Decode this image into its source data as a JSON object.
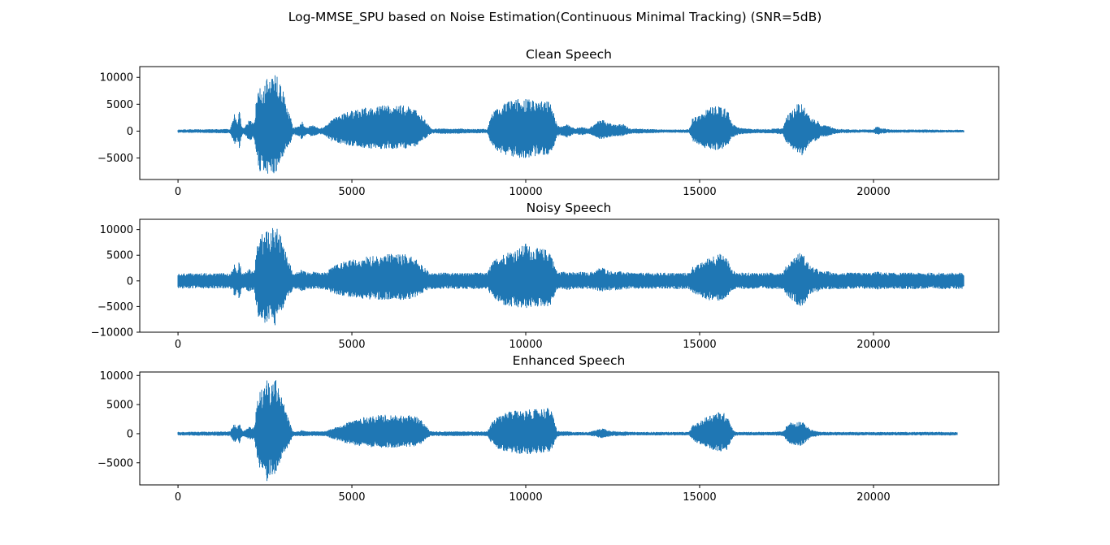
{
  "figure": {
    "suptitle": "Log-MMSE_SPU based on Noise Estimation(Continuous Minimal Tracking) (SNR=5dB)",
    "series_color": "#1f77b4"
  },
  "chart_data": [
    {
      "type": "line",
      "title": "Clean Speech",
      "xlabel": "",
      "ylabel": "",
      "xlim": [
        -1100,
        23600
      ],
      "ylim": [
        -9000,
        12000
      ],
      "xticks": [
        0,
        5000,
        10000,
        15000,
        20000
      ],
      "xtick_labels": [
        "0",
        "5000",
        "10000",
        "15000",
        "20000"
      ],
      "yticks": [
        -5000,
        0,
        5000,
        10000
      ],
      "ytick_labels": [
        "−5000",
        "0",
        "5000",
        "10000"
      ],
      "grid": false,
      "n_samples": 22600,
      "noise_floor": 150,
      "envelope": {
        "x": [
          0,
          1500,
          1580,
          1640,
          1700,
          1760,
          1840,
          1900,
          2050,
          2200,
          2250,
          2300,
          2380,
          2450,
          2550,
          2650,
          2750,
          2800,
          2900,
          3000,
          3150,
          3250,
          3300,
          3400,
          3500,
          3550,
          3700,
          3800,
          3900,
          4050,
          4200,
          4300,
          4400,
          4600,
          4800,
          5000,
          5200,
          5500,
          5800,
          6000,
          6200,
          6500,
          6800,
          7000,
          7200,
          7300,
          7500,
          8000,
          8500,
          8900,
          9000,
          9200,
          9500,
          9800,
          10000,
          10200,
          10400,
          10700,
          10800,
          10900,
          11000,
          11200,
          11400,
          11600,
          11800,
          12000,
          12100,
          12200,
          12400,
          12600,
          12800,
          13000,
          13500,
          14000,
          14500,
          14700,
          14800,
          15000,
          15200,
          15400,
          15600,
          15800,
          15900,
          16000,
          16100,
          16300,
          16600,
          17000,
          17400,
          17500,
          17600,
          17800,
          17900,
          18000,
          18200,
          18400,
          18500,
          18700,
          18800,
          18900,
          19000,
          19500,
          20000,
          20100,
          20200,
          20500,
          21000,
          21500,
          22000,
          22600
        ],
        "upper": [
          300,
          400,
          2200,
          3600,
          1200,
          4000,
          800,
          600,
          2200,
          1500,
          6000,
          7500,
          9500,
          8000,
          11000,
          9000,
          10500,
          11200,
          9000,
          8000,
          4000,
          2500,
          600,
          800,
          1000,
          2000,
          600,
          1000,
          1200,
          500,
          800,
          1500,
          2200,
          3000,
          3500,
          3800,
          4200,
          4500,
          4800,
          5000,
          5000,
          4800,
          4500,
          3000,
          1200,
          400,
          500,
          500,
          400,
          400,
          3000,
          4500,
          5500,
          6000,
          6000,
          5800,
          5800,
          5500,
          3500,
          1200,
          800,
          1400,
          500,
          800,
          500,
          1500,
          2000,
          2200,
          1500,
          1200,
          1400,
          500,
          400,
          300,
          300,
          400,
          2500,
          3000,
          4000,
          4800,
          4800,
          4200,
          1800,
          1200,
          700,
          500,
          400,
          400,
          600,
          2800,
          3500,
          5000,
          5200,
          4600,
          2500,
          2000,
          1000,
          1200,
          700,
          500,
          400,
          300,
          300,
          1000,
          600,
          300,
          300,
          300,
          250,
          250
        ],
        "lower": [
          -300,
          -400,
          -1800,
          -3200,
          -1200,
          -3400,
          -800,
          -600,
          -1800,
          -1500,
          -5000,
          -6500,
          -8000,
          -7000,
          -8800,
          -7500,
          -8500,
          -8200,
          -6500,
          -5000,
          -3000,
          -2000,
          -600,
          -800,
          -1000,
          -1600,
          -600,
          -1000,
          -1000,
          -500,
          -800,
          -1200,
          -1800,
          -2200,
          -2600,
          -2800,
          -3000,
          -3200,
          -3300,
          -3300,
          -3300,
          -3300,
          -3000,
          -2000,
          -900,
          -400,
          -500,
          -500,
          -400,
          -400,
          -2500,
          -3800,
          -4800,
          -5000,
          -5000,
          -4800,
          -4600,
          -4600,
          -3000,
          -1000,
          -800,
          -1200,
          -500,
          -800,
          -500,
          -1000,
          -1400,
          -1500,
          -1200,
          -1000,
          -900,
          -500,
          -400,
          -300,
          -300,
          -400,
          -2000,
          -2600,
          -3300,
          -3500,
          -3500,
          -3000,
          -1500,
          -1000,
          -700,
          -500,
          -400,
          -400,
          -600,
          -2400,
          -3000,
          -4200,
          -4800,
          -4200,
          -2200,
          -1600,
          -1000,
          -1000,
          -700,
          -500,
          -400,
          -300,
          -300,
          -800,
          -500,
          -300,
          -300,
          -300,
          -250,
          -250
        ]
      }
    },
    {
      "type": "line",
      "title": "Noisy Speech",
      "xlabel": "",
      "ylabel": "",
      "xlim": [
        -1100,
        23600
      ],
      "ylim": [
        -10000,
        12000
      ],
      "xticks": [
        0,
        5000,
        10000,
        15000,
        20000
      ],
      "xtick_labels": [
        "0",
        "5000",
        "10000",
        "15000",
        "20000"
      ],
      "yticks": [
        -10000,
        -5000,
        0,
        5000,
        10000
      ],
      "ytick_labels": [
        "−10000",
        "−5000",
        "0",
        "5000",
        "10000"
      ],
      "grid": false,
      "n_samples": 22600,
      "noise_floor": 1500,
      "envelope": {
        "x": [
          0,
          1500,
          1580,
          1640,
          1700,
          1760,
          1840,
          1900,
          2050,
          2200,
          2250,
          2300,
          2380,
          2450,
          2550,
          2650,
          2750,
          2800,
          2900,
          3000,
          3150,
          3250,
          3300,
          3400,
          3500,
          3550,
          3700,
          3800,
          3900,
          4050,
          4200,
          4300,
          4400,
          4600,
          4800,
          5000,
          5200,
          5500,
          5800,
          6000,
          6200,
          6500,
          6800,
          7000,
          7200,
          7300,
          7500,
          8000,
          8500,
          8900,
          9000,
          9200,
          9500,
          9800,
          10000,
          10200,
          10400,
          10700,
          10800,
          10900,
          11000,
          11200,
          11400,
          11600,
          11800,
          12000,
          12100,
          12200,
          12400,
          12600,
          12800,
          13000,
          13500,
          14000,
          14500,
          14700,
          14800,
          15000,
          15200,
          15400,
          15600,
          15800,
          15900,
          16000,
          16100,
          16300,
          16600,
          17000,
          17400,
          17500,
          17600,
          17800,
          17900,
          18000,
          18200,
          18400,
          18500,
          18700,
          18800,
          18900,
          19000,
          19500,
          20000,
          20100,
          20200,
          20500,
          21000,
          21500,
          22000,
          22600
        ],
        "upper": [
          1500,
          1500,
          2500,
          3800,
          1800,
          4200,
          1600,
          1600,
          2500,
          2000,
          6200,
          7800,
          9800,
          8500,
          11200,
          9200,
          10800,
          11400,
          9300,
          8300,
          4300,
          2800,
          1600,
          1700,
          1800,
          2400,
          1600,
          1700,
          1800,
          1600,
          1700,
          2000,
          2600,
          3300,
          3800,
          4100,
          4500,
          4800,
          5200,
          5500,
          5600,
          5300,
          4900,
          3300,
          1800,
          1600,
          1600,
          1600,
          1600,
          1600,
          3300,
          4800,
          5800,
          6300,
          7500,
          6400,
          6400,
          6000,
          3800,
          1800,
          1700,
          2000,
          1600,
          1800,
          1600,
          2000,
          2500,
          2700,
          2000,
          1800,
          1900,
          1600,
          1600,
          1600,
          1600,
          1600,
          2800,
          3300,
          4300,
          5100,
          5300,
          4600,
          2300,
          1900,
          1600,
          1600,
          1600,
          1600,
          1700,
          3100,
          3800,
          5300,
          5600,
          5000,
          2800,
          2300,
          1800,
          1900,
          1600,
          1600,
          1600,
          1600,
          1600,
          1900,
          1700,
          1600,
          1600,
          1600,
          1600,
          1600
        ],
        "lower": [
          -1500,
          -1500,
          -2200,
          -3500,
          -1700,
          -3800,
          -1600,
          -1600,
          -2200,
          -2000,
          -5400,
          -6900,
          -8400,
          -7500,
          -9200,
          -7900,
          -8900,
          -8600,
          -6900,
          -5500,
          -3400,
          -2500,
          -1600,
          -1700,
          -1800,
          -2200,
          -1600,
          -1700,
          -1700,
          -1600,
          -1700,
          -1900,
          -2300,
          -2700,
          -3000,
          -3200,
          -3400,
          -3600,
          -3700,
          -3700,
          -3700,
          -3700,
          -3400,
          -2500,
          -1700,
          -1600,
          -1600,
          -1600,
          -1600,
          -1600,
          -2900,
          -4200,
          -5200,
          -5400,
          -5400,
          -5200,
          -5000,
          -5000,
          -3400,
          -1700,
          -1600,
          -1800,
          -1600,
          -1600,
          -1600,
          -1800,
          -2000,
          -2100,
          -1900,
          -1800,
          -1700,
          -1600,
          -1600,
          -1600,
          -1600,
          -1600,
          -2400,
          -3000,
          -3700,
          -3900,
          -3900,
          -3400,
          -2000,
          -1700,
          -1600,
          -1600,
          -1600,
          -1600,
          -1600,
          -2800,
          -3400,
          -4600,
          -5200,
          -4600,
          -2600,
          -2100,
          -1700,
          -1700,
          -1600,
          -1600,
          -1600,
          -1600,
          -1600,
          -1700,
          -1600,
          -1600,
          -1600,
          -1600,
          -1600,
          -1600
        ]
      }
    },
    {
      "type": "line",
      "title": "Enhanced Speech",
      "xlabel": "",
      "ylabel": "",
      "xlim": [
        -1100,
        23600
      ],
      "ylim": [
        -8800,
        10600
      ],
      "xticks": [
        0,
        5000,
        10000,
        15000,
        20000
      ],
      "xtick_labels": [
        "0",
        "5000",
        "10000",
        "15000",
        "20000"
      ],
      "yticks": [
        -5000,
        0,
        5000,
        10000
      ],
      "ytick_labels": [
        "−5000",
        "0",
        "5000",
        "10000"
      ],
      "grid": false,
      "n_samples": 22400,
      "noise_floor": 250,
      "envelope": {
        "x": [
          0,
          1500,
          1580,
          1640,
          1700,
          1760,
          1840,
          1900,
          2050,
          2200,
          2250,
          2300,
          2380,
          2450,
          2550,
          2650,
          2750,
          2800,
          2900,
          3000,
          3150,
          3250,
          3300,
          3400,
          3500,
          3550,
          3700,
          3800,
          3900,
          4050,
          4200,
          4300,
          4400,
          4600,
          4800,
          5000,
          5200,
          5500,
          5800,
          6000,
          6200,
          6500,
          6800,
          7000,
          7200,
          7300,
          7500,
          8000,
          8500,
          8900,
          9000,
          9200,
          9500,
          9800,
          10000,
          10200,
          10400,
          10700,
          10800,
          10900,
          11000,
          11200,
          11400,
          11600,
          11800,
          12000,
          12100,
          12200,
          12400,
          12600,
          12800,
          13000,
          13500,
          14000,
          14500,
          14700,
          14800,
          15000,
          15200,
          15400,
          15600,
          15800,
          15900,
          16000,
          16100,
          16300,
          16600,
          17000,
          17400,
          17500,
          17600,
          17800,
          17900,
          18000,
          18200,
          18400,
          18500,
          18700,
          18800,
          18900,
          19000,
          19500,
          20000,
          20100,
          20200,
          20500,
          21000,
          21500,
          22000,
          22400
        ],
        "upper": [
          300,
          400,
          1500,
          2000,
          1000,
          2000,
          600,
          500,
          1200,
          1200,
          4500,
          6000,
          8000,
          7000,
          9500,
          8000,
          9000,
          9800,
          8000,
          6000,
          3000,
          1500,
          400,
          400,
          400,
          600,
          400,
          400,
          400,
          400,
          400,
          600,
          800,
          1300,
          1800,
          2300,
          2700,
          3000,
          3200,
          3300,
          3300,
          3200,
          3100,
          2500,
          800,
          400,
          400,
          400,
          400,
          400,
          1800,
          3000,
          3800,
          4000,
          4200,
          4100,
          4400,
          4500,
          2800,
          500,
          400,
          400,
          300,
          300,
          300,
          600,
          800,
          1000,
          600,
          400,
          400,
          300,
          300,
          300,
          300,
          300,
          1500,
          2000,
          3000,
          3600,
          3800,
          3400,
          1500,
          400,
          300,
          300,
          300,
          300,
          400,
          1400,
          2000,
          2000,
          2300,
          1800,
          700,
          400,
          300,
          300,
          300,
          300,
          300,
          300,
          300,
          300,
          300,
          300,
          300,
          300,
          300,
          300
        ],
        "lower": [
          -300,
          -400,
          -1200,
          -1800,
          -900,
          -1800,
          -500,
          -500,
          -1000,
          -1000,
          -3800,
          -5000,
          -6500,
          -5800,
          -8300,
          -7000,
          -7500,
          -7200,
          -5500,
          -4000,
          -2500,
          -1200,
          -400,
          -400,
          -400,
          -500,
          -400,
          -400,
          -400,
          -400,
          -400,
          -500,
          -800,
          -1200,
          -1600,
          -1900,
          -2100,
          -2300,
          -2400,
          -2400,
          -2400,
          -2300,
          -2200,
          -1800,
          -600,
          -400,
          -400,
          -400,
          -400,
          -400,
          -1500,
          -2600,
          -3300,
          -3500,
          -3500,
          -3500,
          -3300,
          -3100,
          -2300,
          -500,
          -400,
          -400,
          -300,
          -300,
          -300,
          -500,
          -700,
          -800,
          -500,
          -400,
          -400,
          -300,
          -300,
          -300,
          -300,
          -300,
          -1200,
          -1800,
          -2600,
          -2900,
          -3200,
          -2900,
          -1300,
          -400,
          -300,
          -300,
          -300,
          -300,
          -400,
          -1200,
          -1800,
          -2000,
          -2200,
          -1700,
          -700,
          -400,
          -300,
          -300,
          -300,
          -300,
          -300,
          -300,
          -300,
          -300,
          -300,
          -300,
          -300,
          -300,
          -300,
          -300
        ]
      }
    }
  ]
}
